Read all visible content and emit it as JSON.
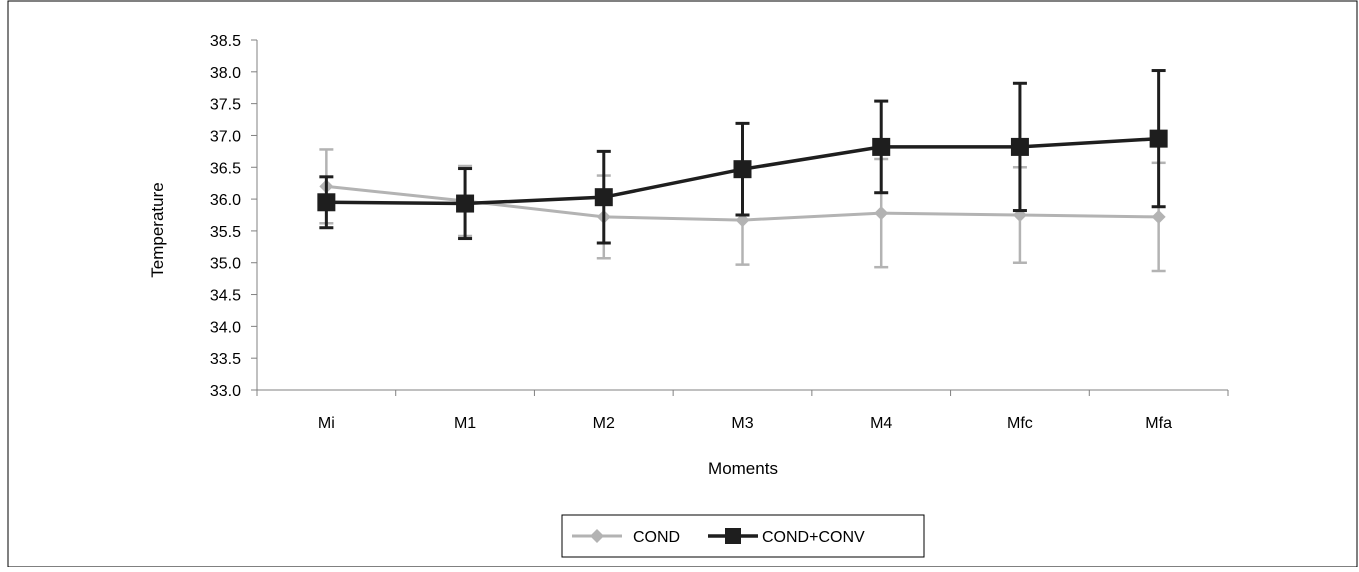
{
  "chart_data": {
    "type": "line",
    "title": "",
    "xlabel": "Moments",
    "ylabel": "Temperature",
    "categories": [
      "Mi",
      "M1",
      "M2",
      "M3",
      "M4",
      "Mfc",
      "Mfa"
    ],
    "ylim": [
      33.0,
      38.5
    ],
    "yticks": [
      "33.0",
      "33.5",
      "34.0",
      "34.5",
      "35.0",
      "35.5",
      "36.0",
      "36.5",
      "37.0",
      "37.5",
      "38.0",
      "38.5"
    ],
    "grid": false,
    "legend_position": "bottom",
    "error_bars": true,
    "series": [
      {
        "name": "COND",
        "color": "#b3b3b3",
        "marker": "diamond",
        "values": [
          36.2,
          35.97,
          35.72,
          35.67,
          35.78,
          35.75,
          35.72
        ],
        "error": [
          0.58,
          0.55,
          0.65,
          0.7,
          0.85,
          0.75,
          0.85
        ]
      },
      {
        "name": "COND+CONV",
        "color": "#1e1e1e",
        "marker": "square",
        "values": [
          35.95,
          35.93,
          36.03,
          36.47,
          36.82,
          36.82,
          36.95
        ],
        "error": [
          0.4,
          0.55,
          0.72,
          0.72,
          0.72,
          1.0,
          1.07
        ]
      }
    ]
  }
}
